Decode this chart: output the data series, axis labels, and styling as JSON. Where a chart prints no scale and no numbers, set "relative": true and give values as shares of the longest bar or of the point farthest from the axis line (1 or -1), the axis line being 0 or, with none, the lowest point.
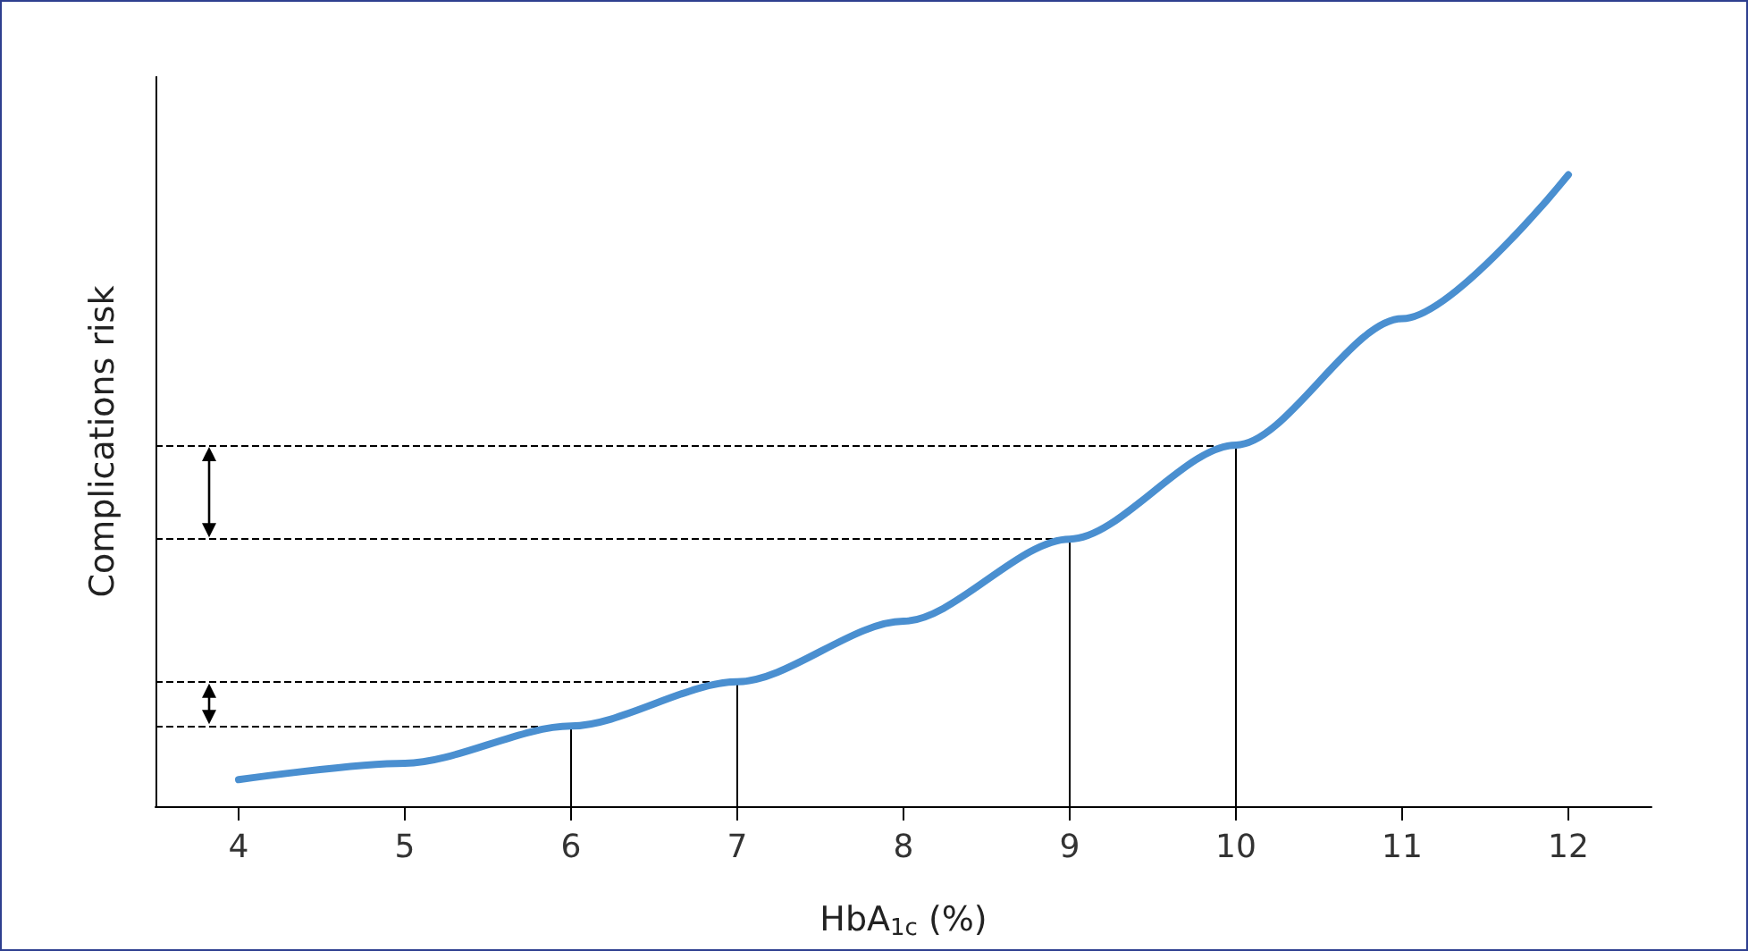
{
  "chart_data": {
    "type": "line",
    "relative": true,
    "xlabel": "HbA$_{1c}$ (%)",
    "ylabel": "Complications risk",
    "x": [
      4,
      5,
      6,
      7,
      8,
      9,
      10,
      11,
      12
    ],
    "series": [
      {
        "color": "#4a8fd0",
        "values": [
          0.042,
          0.068,
          0.127,
          0.197,
          0.293,
          0.423,
          0.572,
          0.772,
          1.0
        ]
      }
    ],
    "xlim": [
      3.5,
      12.5
    ],
    "xticks": [
      4,
      5,
      6,
      7,
      8,
      9,
      10,
      11,
      12
    ],
    "ref_lines": [
      {
        "axis": "y",
        "value": 0.127,
        "line_style": "dashed",
        "color": "#000000"
      },
      {
        "axis": "y",
        "value": 0.197,
        "line_style": "dashed",
        "color": "#000000"
      },
      {
        "axis": "y",
        "value": 0.423,
        "line_style": "dashed",
        "color": "#000000"
      },
      {
        "axis": "y",
        "value": 0.572,
        "line_style": "dashed",
        "color": "#000000"
      },
      {
        "axis": "x",
        "value": 6,
        "line_style": "solid",
        "color": "#000000"
      },
      {
        "axis": "x",
        "value": 7,
        "line_style": "solid",
        "color": "#000000"
      },
      {
        "axis": "x",
        "value": 9,
        "line_style": "solid",
        "color": "#000000"
      },
      {
        "axis": "x",
        "value": 10,
        "line_style": "solid",
        "color": "#000000"
      }
    ],
    "grid": false,
    "marker": "none",
    "line_style": "solid"
  }
}
